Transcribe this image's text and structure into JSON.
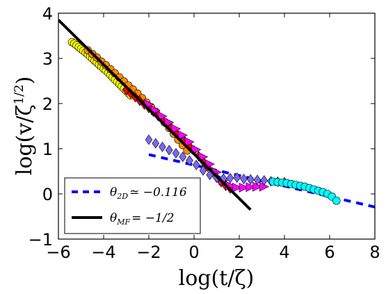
{
  "chart_data": {
    "type": "scatter",
    "xlabel": "log(t/ζ)",
    "ylabel": "log(v/ζ^{1/2})",
    "xlim": [
      -6,
      8
    ],
    "ylim": [
      -1,
      4
    ],
    "xticks": [
      "−6",
      "−4",
      "−2",
      "0",
      "2",
      "4",
      "6",
      "8"
    ],
    "yticks": [
      "−1",
      "0",
      "1",
      "2",
      "3",
      "4"
    ],
    "grid": false,
    "legend_placement": "lower-left",
    "lines": [
      {
        "name": "θ_{2D} ≃ −0.116",
        "style": "dashed",
        "color": "#0000ff",
        "x": [
          -2,
          8
        ],
        "y": [
          0.87,
          -0.29
        ]
      },
      {
        "name": "θ_{MF} = −1/2",
        "style": "solid",
        "color": "#000000",
        "x": [
          -6,
          2.5
        ],
        "y": [
          3.85,
          -0.35
        ]
      }
    ],
    "series": [
      {
        "marker": "circle",
        "color": "#ffff00",
        "x": [
          -5.4,
          -5.3,
          -5.2,
          -5.1,
          -5.0,
          -4.9,
          -4.8,
          -4.7,
          -4.6,
          -4.5,
          -4.4,
          -4.3,
          -4.2,
          -4.1,
          -4.0,
          -3.9,
          -3.8,
          -3.7,
          -3.6,
          -3.5,
          -3.4,
          -3.3,
          -3.2,
          -3.1,
          -3.0,
          -2.9,
          -2.8
        ],
        "y": [
          3.36,
          3.33,
          3.29,
          3.25,
          3.21,
          3.17,
          3.13,
          3.09,
          3.04,
          3.0,
          2.95,
          2.91,
          2.86,
          2.82,
          2.77,
          2.73,
          2.68,
          2.63,
          2.58,
          2.53,
          2.48,
          2.43,
          2.38,
          2.33,
          2.28,
          2.23,
          2.18
        ]
      },
      {
        "marker": "circle",
        "color": "#ff8c00",
        "x": [
          -4.7,
          -4.5,
          -4.3,
          -4.1,
          -3.9,
          -3.7,
          -3.5,
          -3.3,
          -3.1,
          -2.9,
          -2.7,
          -2.5,
          -2.3,
          -2.1,
          -1.9,
          -1.7,
          -1.5,
          -1.3,
          -1.1,
          -0.9,
          -0.7,
          -0.5,
          -0.3
        ],
        "y": [
          3.18,
          3.1,
          3.02,
          2.93,
          2.85,
          2.76,
          2.67,
          2.58,
          2.49,
          2.4,
          2.31,
          2.22,
          2.12,
          2.02,
          1.92,
          1.82,
          1.7,
          1.58,
          1.46,
          1.33,
          1.2,
          1.08,
          0.96
        ]
      },
      {
        "marker": "diamond",
        "color": "#ff0000",
        "x": [
          -3.0,
          -2.8,
          -2.6,
          -2.4,
          -2.2,
          -2.0,
          -1.8,
          -1.6,
          -1.4,
          -1.2,
          -1.0,
          -0.8,
          -0.6,
          -0.4,
          -0.2,
          0.0,
          0.2,
          0.4,
          0.6,
          0.8,
          1.0,
          1.2,
          1.4,
          1.6
        ],
        "y": [
          2.3,
          2.22,
          2.14,
          2.06,
          1.98,
          1.9,
          1.82,
          1.74,
          1.65,
          1.56,
          1.46,
          1.36,
          1.26,
          1.16,
          1.06,
          0.96,
          0.84,
          0.72,
          0.6,
          0.48,
          0.36,
          0.26,
          0.18,
          0.12
        ]
      },
      {
        "marker": "triangle-right",
        "color": "#ff00ff",
        "x": [
          -2.0,
          -1.7,
          -1.4,
          -1.1,
          -0.8,
          -0.5,
          -0.2,
          0.1,
          0.4,
          0.7,
          1.0,
          1.3,
          1.6,
          1.9,
          2.2,
          2.5,
          2.8,
          3.1
        ],
        "y": [
          1.98,
          1.85,
          1.72,
          1.58,
          1.44,
          1.3,
          1.15,
          0.98,
          0.82,
          0.66,
          0.48,
          0.3,
          0.18,
          0.14,
          0.14,
          0.15,
          0.16,
          0.16
        ]
      },
      {
        "marker": "diamond",
        "color": "#7b68ee",
        "x": [
          -2.0,
          -1.7,
          -1.4,
          -1.1,
          -0.8,
          -0.5,
          -0.2,
          0.1,
          0.4,
          0.7,
          1.0,
          1.3,
          1.6,
          1.9,
          2.2,
          2.5,
          2.8,
          3.1,
          3.4,
          3.7,
          4.0
        ],
        "y": [
          1.2,
          1.12,
          1.04,
          0.97,
          0.9,
          0.82,
          0.74,
          0.64,
          0.52,
          0.42,
          0.36,
          0.34,
          0.35,
          0.36,
          0.33,
          0.32,
          0.31,
          0.3,
          0.28,
          0.27,
          0.26
        ]
      },
      {
        "marker": "circle",
        "color": "#00ffff",
        "x": [
          3.5,
          3.7,
          3.9,
          4.1,
          4.3,
          4.5,
          4.7,
          4.9,
          5.1,
          5.3,
          5.5,
          5.7,
          5.9,
          6.1,
          6.3
        ],
        "y": [
          0.27,
          0.26,
          0.25,
          0.24,
          0.22,
          0.2,
          0.18,
          0.16,
          0.13,
          0.1,
          0.07,
          0.04,
          0.0,
          -0.06,
          -0.15
        ]
      }
    ]
  },
  "legend": {
    "entries": [
      {
        "base": "θ",
        "sub": "2D",
        "rest": "≃ −0.116",
        "style": "dashed",
        "color": "#0000ff"
      },
      {
        "base": "θ",
        "sub": "MF",
        "rest": "= −1/2",
        "style": "solid",
        "color": "#000000"
      }
    ]
  },
  "labels": {
    "x_base": "log(t/ζ)",
    "y_base": "log(v/ζ",
    "y_sup": "1/2",
    "y_close": ")"
  }
}
